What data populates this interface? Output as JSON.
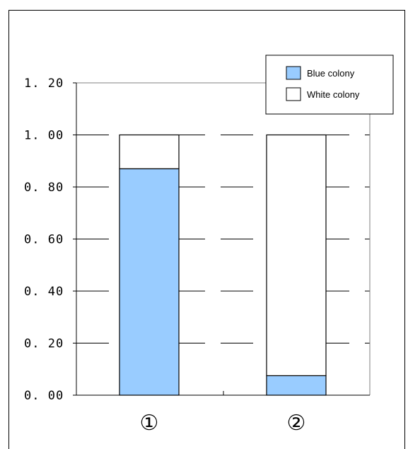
{
  "chart_data": {
    "type": "bar",
    "stacked": true,
    "categories": [
      "①",
      "②"
    ],
    "series": [
      {
        "name": "Blue colony",
        "values": [
          0.87,
          0.075
        ],
        "color": "#99CCFF"
      },
      {
        "name": "White colony",
        "values": [
          0.13,
          0.925
        ],
        "color": "#FFFFFF"
      }
    ],
    "yticks": [
      "0.00",
      "0.20",
      "0.40",
      "0.60",
      "0.80",
      "1.00",
      "1.20"
    ],
    "ylim": [
      0,
      1.2
    ],
    "grid": "horizontal dashed",
    "legend_position": "top-right",
    "title": "",
    "xlabel": "",
    "ylabel": ""
  }
}
